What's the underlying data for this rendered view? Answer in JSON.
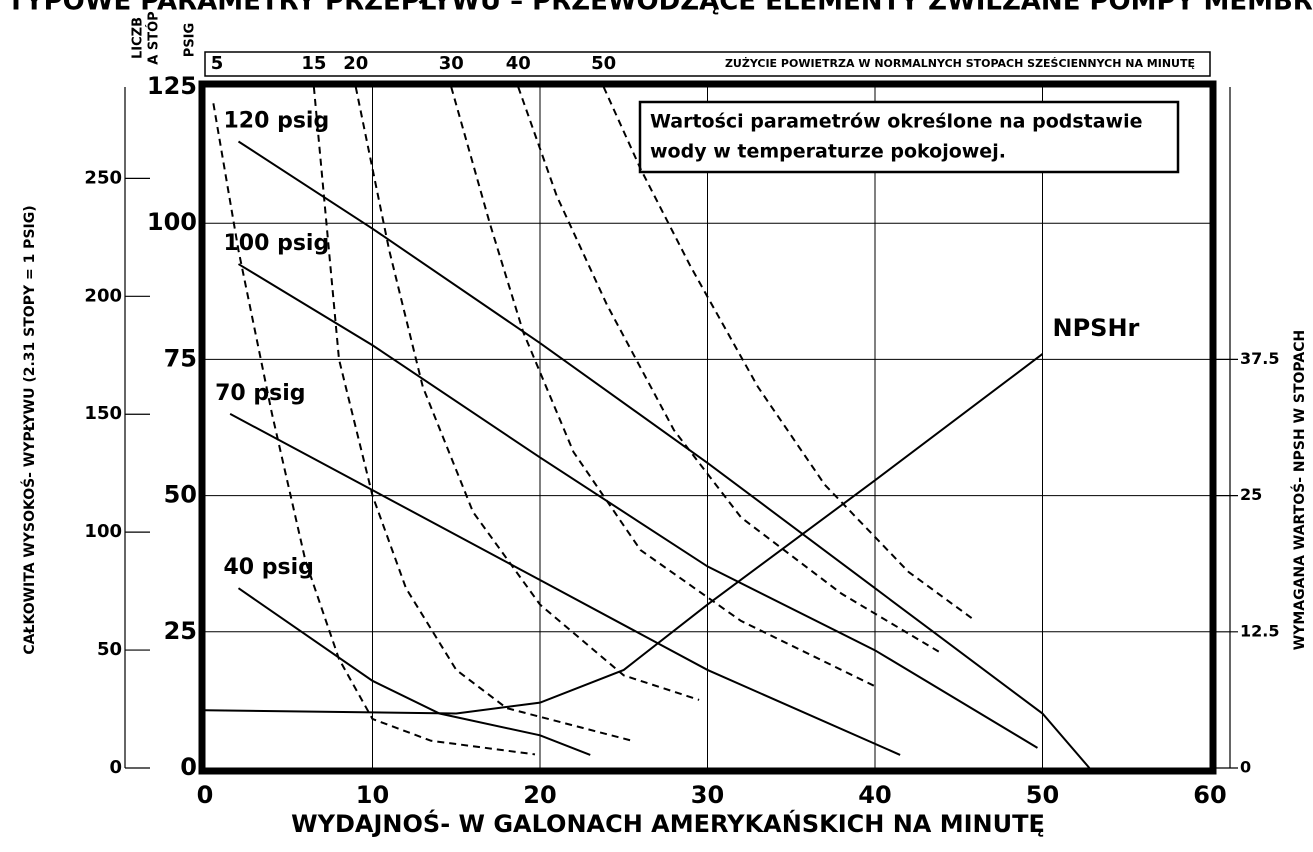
{
  "chart_data": {
    "type": "line",
    "title": "TYPOWE PARAMETRY PRZEPŁYWU – PRZEWODZĄCE ELEMENTY ZWILŻANE POMPY MEMBRANOWEJ",
    "x_label": "WYDAJNOŚ- W GALONACH AMERYKAŃSKICH NA MINUTĘ",
    "y_label": "CAŁKOWITA WYSOKOŚ- WYPŁYWU (2.31 STOPY = 1 PSIG)",
    "y2_label": "WYMAGANA WARTOŚ- NPSH W STOPACH",
    "y_unit_label": "PSIG",
    "y3_unit_label": [
      "LICZB",
      "A STÓP"
    ],
    "air_label": "ZUŻYCIE POWIETRZA W NORMALNYCH STOPACH SZEŚCIENNYCH NA MINUTĘ",
    "note": [
      "Wartości parametrów określone na podstawie",
      "wody w temperaturze pokojowej."
    ],
    "xlim": [
      0,
      60
    ],
    "xticks": [
      0,
      10,
      20,
      30,
      40,
      50,
      60
    ],
    "ylim": [
      0,
      125
    ],
    "yticks": [
      0,
      25,
      50,
      75,
      100,
      125
    ],
    "y3lim": [
      0,
      288.75
    ],
    "y3ticks": [
      0,
      50,
      100,
      150,
      200,
      250
    ],
    "y2lim": [
      0,
      62.5
    ],
    "y2ticks": [
      0,
      12.5,
      25,
      37.5
    ],
    "grid": true,
    "series": [
      {
        "name": "120 psig",
        "color": "#000000",
        "style": "solid",
        "x": [
          2,
          10,
          20,
          30,
          40,
          50,
          52.8
        ],
        "values": [
          115,
          99,
          78,
          56,
          33,
          10,
          0
        ]
      },
      {
        "name": "100 psig",
        "color": "#000000",
        "style": "solid",
        "x": [
          2,
          10,
          20,
          30,
          40,
          49.7
        ],
        "values": [
          92.5,
          77.6,
          57,
          37,
          21.6,
          3.7
        ]
      },
      {
        "name": "70 psig",
        "color": "#000000",
        "style": "solid",
        "x": [
          1.5,
          10,
          20,
          30,
          41.5
        ],
        "values": [
          65,
          51,
          34.5,
          18,
          2.4
        ]
      },
      {
        "name": "40 psig",
        "color": "#000000",
        "style": "solid",
        "x": [
          2,
          10,
          14,
          20,
          23
        ],
        "values": [
          33,
          16,
          10,
          6,
          2.4
        ]
      },
      {
        "name": "5",
        "color": "#000000",
        "style": "dashed",
        "x": [
          0.5,
          2,
          4,
          6,
          8,
          10,
          13.5,
          19.7
        ],
        "values": [
          122,
          95,
          65,
          38,
          20,
          9,
          5,
          2.5
        ]
      },
      {
        "name": "15",
        "color": "#000000",
        "style": "dashed",
        "x": [
          6.5,
          8,
          10,
          12,
          15,
          18,
          25.5
        ],
        "values": [
          125,
          75,
          50,
          33,
          18,
          11,
          5
        ]
      },
      {
        "name": "20",
        "color": "#000000",
        "style": "dashed",
        "x": [
          9,
          11,
          13,
          16,
          20,
          25,
          29.5
        ],
        "values": [
          125,
          95,
          70,
          47,
          30,
          17,
          12.5
        ]
      },
      {
        "name": "30",
        "color": "#000000",
        "style": "dashed",
        "x": [
          14.7,
          17,
          19,
          22,
          26,
          32,
          40
        ],
        "values": [
          125,
          100,
          80,
          58,
          40,
          27,
          15
        ]
      },
      {
        "name": "40",
        "color": "#000000",
        "style": "dashed",
        "x": [
          18.7,
          21,
          24,
          28,
          32,
          38,
          44
        ],
        "values": [
          125,
          105,
          85,
          62,
          46,
          32,
          21
        ]
      },
      {
        "name": "50",
        "color": "#000000",
        "style": "dashed",
        "x": [
          23.8,
          26,
          29,
          33,
          37,
          42,
          46
        ],
        "values": [
          125,
          110,
          92,
          70,
          52,
          36,
          27
        ]
      },
      {
        "name": "NPSHr",
        "color": "#000000",
        "style": "solid",
        "axis": "y2",
        "x": [
          0,
          10,
          15,
          20,
          25,
          30,
          40,
          50
        ],
        "values": [
          5.3,
          5.1,
          5,
          6,
          9,
          15,
          26.4,
          38
        ]
      }
    ]
  }
}
